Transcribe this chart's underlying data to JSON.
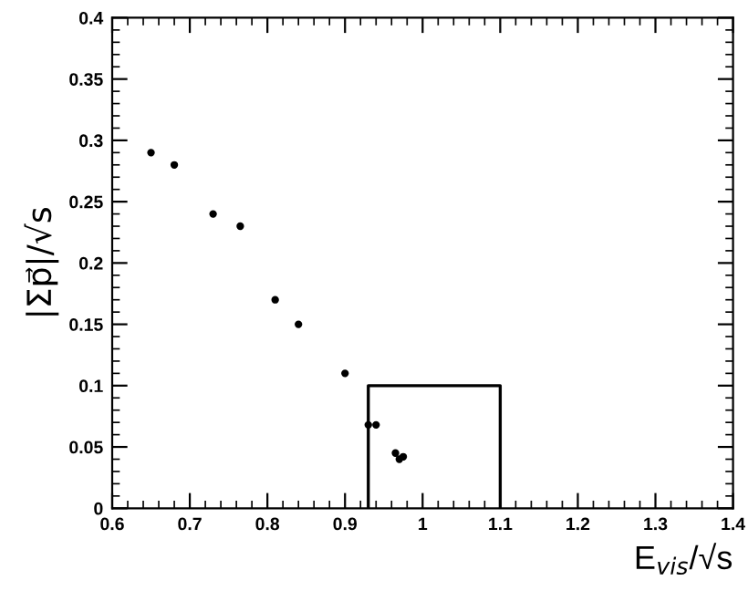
{
  "chart_data": {
    "type": "scatter",
    "xlabel": "E$_{vis}$/√s",
    "ylabel": "|Σp⃗|/√s",
    "xlim": [
      0.6,
      1.4
    ],
    "ylim": [
      0,
      0.4
    ],
    "xticks": [
      0.6,
      0.7,
      0.8,
      0.9,
      1,
      1.1,
      1.2,
      1.3,
      1.4
    ],
    "yticks": [
      0,
      0.05,
      0.1,
      0.15,
      0.2,
      0.25,
      0.3,
      0.35,
      0.4
    ],
    "grid": false,
    "legend": false,
    "series": [
      {
        "color": "#000000",
        "marker": "circle",
        "x": [
          0.65,
          0.68,
          0.73,
          0.765,
          0.81,
          0.84,
          0.9,
          0.93,
          0.94,
          0.965,
          0.97,
          0.975
        ],
        "values": [
          0.29,
          0.28,
          0.24,
          0.23,
          0.17,
          0.15,
          0.11,
          0.068,
          0.068,
          0.045,
          0.04,
          0.042
        ]
      },
      {
        "type": "line",
        "color": "#000000",
        "marker": "none",
        "line_style": "solid",
        "x": [
          0.93,
          0.93,
          1.1,
          1.1
        ],
        "values": [
          0,
          0.1,
          0.1,
          0
        ]
      }
    ]
  }
}
